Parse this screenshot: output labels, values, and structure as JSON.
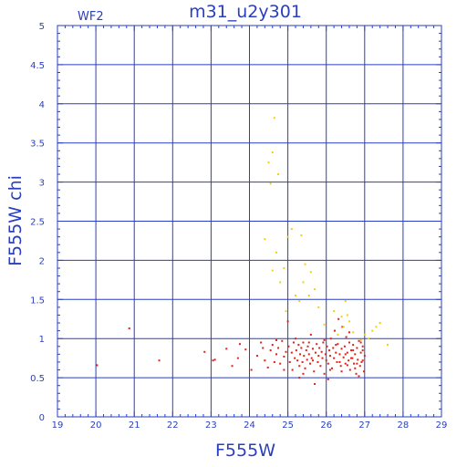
{
  "chart_data": {
    "type": "scatter",
    "title": "m31_u2y301",
    "panel_label": "WF2",
    "xlabel": "F555W",
    "ylabel": "F555W  chi",
    "xlim": [
      19,
      29
    ],
    "ylim": [
      0,
      5
    ],
    "xticks": [
      "19",
      "20",
      "21",
      "22",
      "23",
      "24",
      "25",
      "26",
      "27",
      "28",
      "29"
    ],
    "yticks": [
      "0",
      "0.5",
      "1",
      "1.5",
      "2",
      "2.5",
      "3",
      "3.5",
      "4",
      "4.5",
      "5"
    ],
    "grid": true,
    "colors": {
      "frame": "#2a3fbf",
      "grid": "#2a3fbf",
      "text": "#2a3fbf"
    },
    "series": [
      {
        "color": "#e0201a",
        "points": [
          [
            20.03,
            0.66
          ],
          [
            20.87,
            1.13
          ],
          [
            21.65,
            0.72
          ],
          [
            22.83,
            0.83
          ],
          [
            23.05,
            0.72
          ],
          [
            23.1,
            0.73
          ],
          [
            23.4,
            0.87
          ],
          [
            23.55,
            0.65
          ],
          [
            23.7,
            0.75
          ],
          [
            23.75,
            0.93
          ],
          [
            23.9,
            0.86
          ],
          [
            24.05,
            0.6
          ],
          [
            24.2,
            0.78
          ],
          [
            24.3,
            0.95
          ],
          [
            24.35,
            0.88
          ],
          [
            24.4,
            0.72
          ],
          [
            24.48,
            0.63
          ],
          [
            24.55,
            0.85
          ],
          [
            24.6,
            0.92
          ],
          [
            24.65,
            0.7
          ],
          [
            24.7,
            0.8
          ],
          [
            24.75,
            0.88
          ],
          [
            24.8,
            0.68
          ],
          [
            24.85,
            0.97
          ],
          [
            24.9,
            0.77
          ],
          [
            24.95,
            0.83
          ],
          [
            25.0,
            1.22
          ],
          [
            25.02,
            0.9
          ],
          [
            25.05,
            0.7
          ],
          [
            25.1,
            0.82
          ],
          [
            25.12,
            0.6
          ],
          [
            25.15,
            0.95
          ],
          [
            25.18,
            0.75
          ],
          [
            25.2,
            1.0
          ],
          [
            25.22,
            0.85
          ],
          [
            25.25,
            0.72
          ],
          [
            25.28,
            0.92
          ],
          [
            25.3,
            0.65
          ],
          [
            25.32,
            0.8
          ],
          [
            25.35,
            0.88
          ],
          [
            25.38,
            0.7
          ],
          [
            25.4,
            0.95
          ],
          [
            25.42,
            0.78
          ],
          [
            25.45,
            0.62
          ],
          [
            25.48,
            0.85
          ],
          [
            25.5,
            0.73
          ],
          [
            25.52,
            0.9
          ],
          [
            25.55,
            0.8
          ],
          [
            25.58,
            0.68
          ],
          [
            25.6,
            1.05
          ],
          [
            25.62,
            0.75
          ],
          [
            25.65,
            0.87
          ],
          [
            25.68,
            0.58
          ],
          [
            25.7,
            0.42
          ],
          [
            25.72,
            0.82
          ],
          [
            25.75,
            0.93
          ],
          [
            25.78,
            0.7
          ],
          [
            25.8,
            0.78
          ],
          [
            25.82,
            0.88
          ],
          [
            25.85,
            0.65
          ],
          [
            25.88,
            0.83
          ],
          [
            25.9,
            0.75
          ],
          [
            25.92,
            0.95
          ],
          [
            25.95,
            0.55
          ],
          [
            25.98,
            0.8
          ],
          [
            26.0,
            0.72
          ],
          [
            26.02,
            0.9
          ],
          [
            26.05,
            0.68
          ],
          [
            26.08,
            0.85
          ],
          [
            26.1,
            0.78
          ],
          [
            26.12,
            1.0
          ],
          [
            26.15,
            0.62
          ],
          [
            26.18,
            0.88
          ],
          [
            26.2,
            0.75
          ],
          [
            26.22,
            1.1
          ],
          [
            26.25,
            0.82
          ],
          [
            26.28,
            0.7
          ],
          [
            26.3,
            0.93
          ],
          [
            26.32,
            1.25
          ],
          [
            26.35,
            0.8
          ],
          [
            26.38,
            0.65
          ],
          [
            26.4,
            0.87
          ],
          [
            26.42,
            1.15
          ],
          [
            26.45,
            0.76
          ],
          [
            26.48,
            0.9
          ],
          [
            26.5,
            0.68
          ],
          [
            26.52,
            1.02
          ],
          [
            26.55,
            0.82
          ],
          [
            26.58,
            0.72
          ],
          [
            26.6,
            0.95
          ],
          [
            26.62,
            0.6
          ],
          [
            26.65,
            0.85
          ],
          [
            26.68,
            0.75
          ],
          [
            26.7,
            0.92
          ],
          [
            26.72,
            0.68
          ],
          [
            26.75,
            0.8
          ],
          [
            26.78,
            0.55
          ],
          [
            26.8,
            0.88
          ],
          [
            26.82,
            0.73
          ],
          [
            26.85,
            0.97
          ],
          [
            26.88,
            0.65
          ],
          [
            26.9,
            0.82
          ],
          [
            26.92,
            0.7
          ],
          [
            26.95,
            0.9
          ],
          [
            26.98,
            0.58
          ],
          [
            27.0,
            0.78
          ],
          [
            26.05,
            0.48
          ],
          [
            25.3,
            0.5
          ],
          [
            26.6,
            1.08
          ],
          [
            26.75,
            0.62
          ],
          [
            26.9,
            0.95
          ],
          [
            26.85,
            0.52
          ],
          [
            26.95,
            0.72
          ],
          [
            26.7,
            0.85
          ],
          [
            26.55,
            0.66
          ],
          [
            26.4,
            0.58
          ],
          [
            26.25,
            0.92
          ],
          [
            26.1,
            0.6
          ],
          [
            25.95,
            0.98
          ],
          [
            25.4,
            0.55
          ],
          [
            25.55,
            0.95
          ],
          [
            25.65,
            0.72
          ],
          [
            24.9,
            0.6
          ],
          [
            24.7,
            0.98
          ],
          [
            26.65,
            0.75
          ],
          [
            26.8,
            0.68
          ],
          [
            26.95,
            0.85
          ],
          [
            26.5,
            0.8
          ],
          [
            26.35,
            0.7
          ]
        ]
      },
      {
        "color": "#f2d10b",
        "points": [
          [
            24.65,
            3.82
          ],
          [
            24.6,
            3.38
          ],
          [
            24.5,
            3.25
          ],
          [
            24.75,
            3.1
          ],
          [
            24.55,
            2.98
          ],
          [
            24.4,
            2.27
          ],
          [
            24.7,
            2.1
          ],
          [
            25.1,
            2.4
          ],
          [
            25.0,
            2.3
          ],
          [
            25.35,
            2.32
          ],
          [
            24.9,
            1.9
          ],
          [
            24.6,
            1.87
          ],
          [
            25.45,
            1.95
          ],
          [
            25.6,
            1.85
          ],
          [
            25.4,
            1.72
          ],
          [
            25.7,
            1.63
          ],
          [
            25.55,
            1.55
          ],
          [
            25.3,
            1.48
          ],
          [
            24.8,
            1.72
          ],
          [
            26.5,
            1.48
          ],
          [
            26.2,
            1.35
          ],
          [
            25.8,
            1.4
          ],
          [
            26.4,
            1.28
          ],
          [
            26.6,
            1.22
          ],
          [
            26.45,
            1.15
          ],
          [
            27.0,
            1.05
          ],
          [
            27.3,
            1.15
          ],
          [
            27.2,
            1.1
          ],
          [
            27.1,
            1.0
          ],
          [
            27.4,
            1.2
          ],
          [
            26.3,
            1.05
          ],
          [
            26.7,
            1.08
          ],
          [
            26.9,
            0.98
          ],
          [
            27.6,
            0.92
          ],
          [
            26.55,
            1.3
          ],
          [
            25.2,
            1.55
          ],
          [
            25.95,
            1.18
          ],
          [
            24.95,
            1.35
          ]
        ]
      }
    ]
  }
}
